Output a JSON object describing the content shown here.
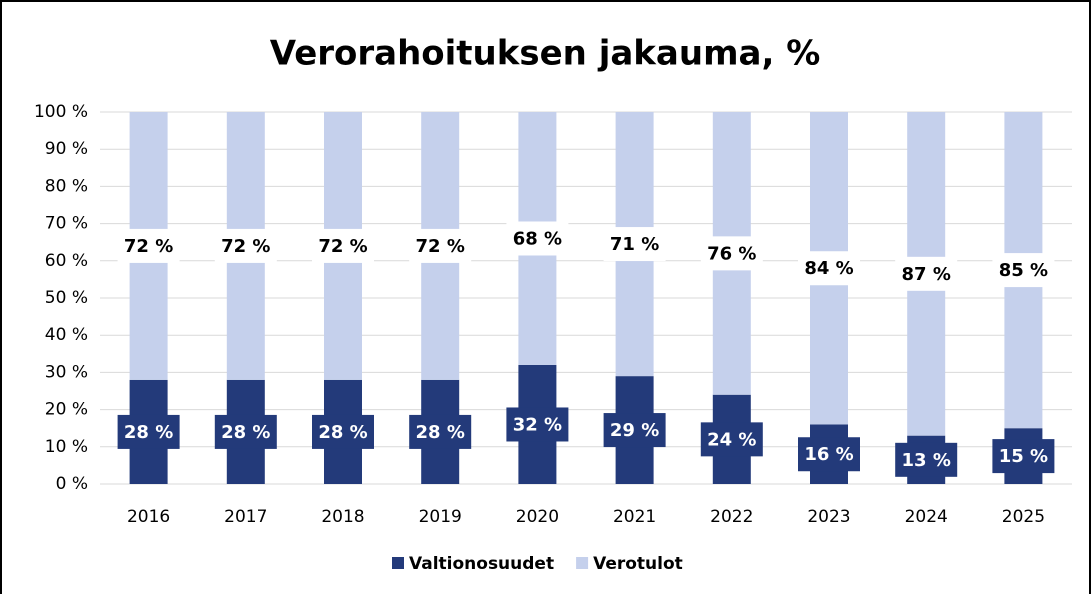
{
  "chart_data": {
    "type": "stacked_bar",
    "title": "Verorahoituksen jakauma, %",
    "categories": [
      "2016",
      "2017",
      "2018",
      "2019",
      "2020",
      "2021",
      "2022",
      "2023",
      "2024",
      "2025"
    ],
    "series": [
      {
        "name": "Valtionosuudet",
        "color": "#233a7a",
        "values": [
          28,
          28,
          28,
          28,
          32,
          29,
          24,
          16,
          13,
          15
        ],
        "value_labels": [
          "28 %",
          "28 %",
          "28 %",
          "28 %",
          "32 %",
          "29 %",
          "24 %",
          "16 %",
          "13 %",
          "15 %"
        ]
      },
      {
        "name": "Verotulot",
        "color": "#c5d0ec",
        "values": [
          72,
          72,
          72,
          72,
          68,
          71,
          76,
          84,
          87,
          85
        ],
        "value_labels": [
          "72 %",
          "72 %",
          "72 %",
          "72 %",
          "68 %",
          "71 %",
          "76 %",
          "84 %",
          "87 %",
          "85 %"
        ]
      }
    ],
    "ylim": [
      0,
      100
    ],
    "yticks": [
      {
        "value": 0,
        "label": "0 %"
      },
      {
        "value": 10,
        "label": "10 %"
      },
      {
        "value": 20,
        "label": "20 %"
      },
      {
        "value": 30,
        "label": "30 %"
      },
      {
        "value": 40,
        "label": "40 %"
      },
      {
        "value": 50,
        "label": "50 %"
      },
      {
        "value": 60,
        "label": "60 %"
      },
      {
        "value": 70,
        "label": "70 %"
      },
      {
        "value": 80,
        "label": "80 %"
      },
      {
        "value": 90,
        "label": "90 %"
      },
      {
        "value": 100,
        "label": "100 %"
      }
    ],
    "grid": true,
    "legend": "bottom"
  }
}
